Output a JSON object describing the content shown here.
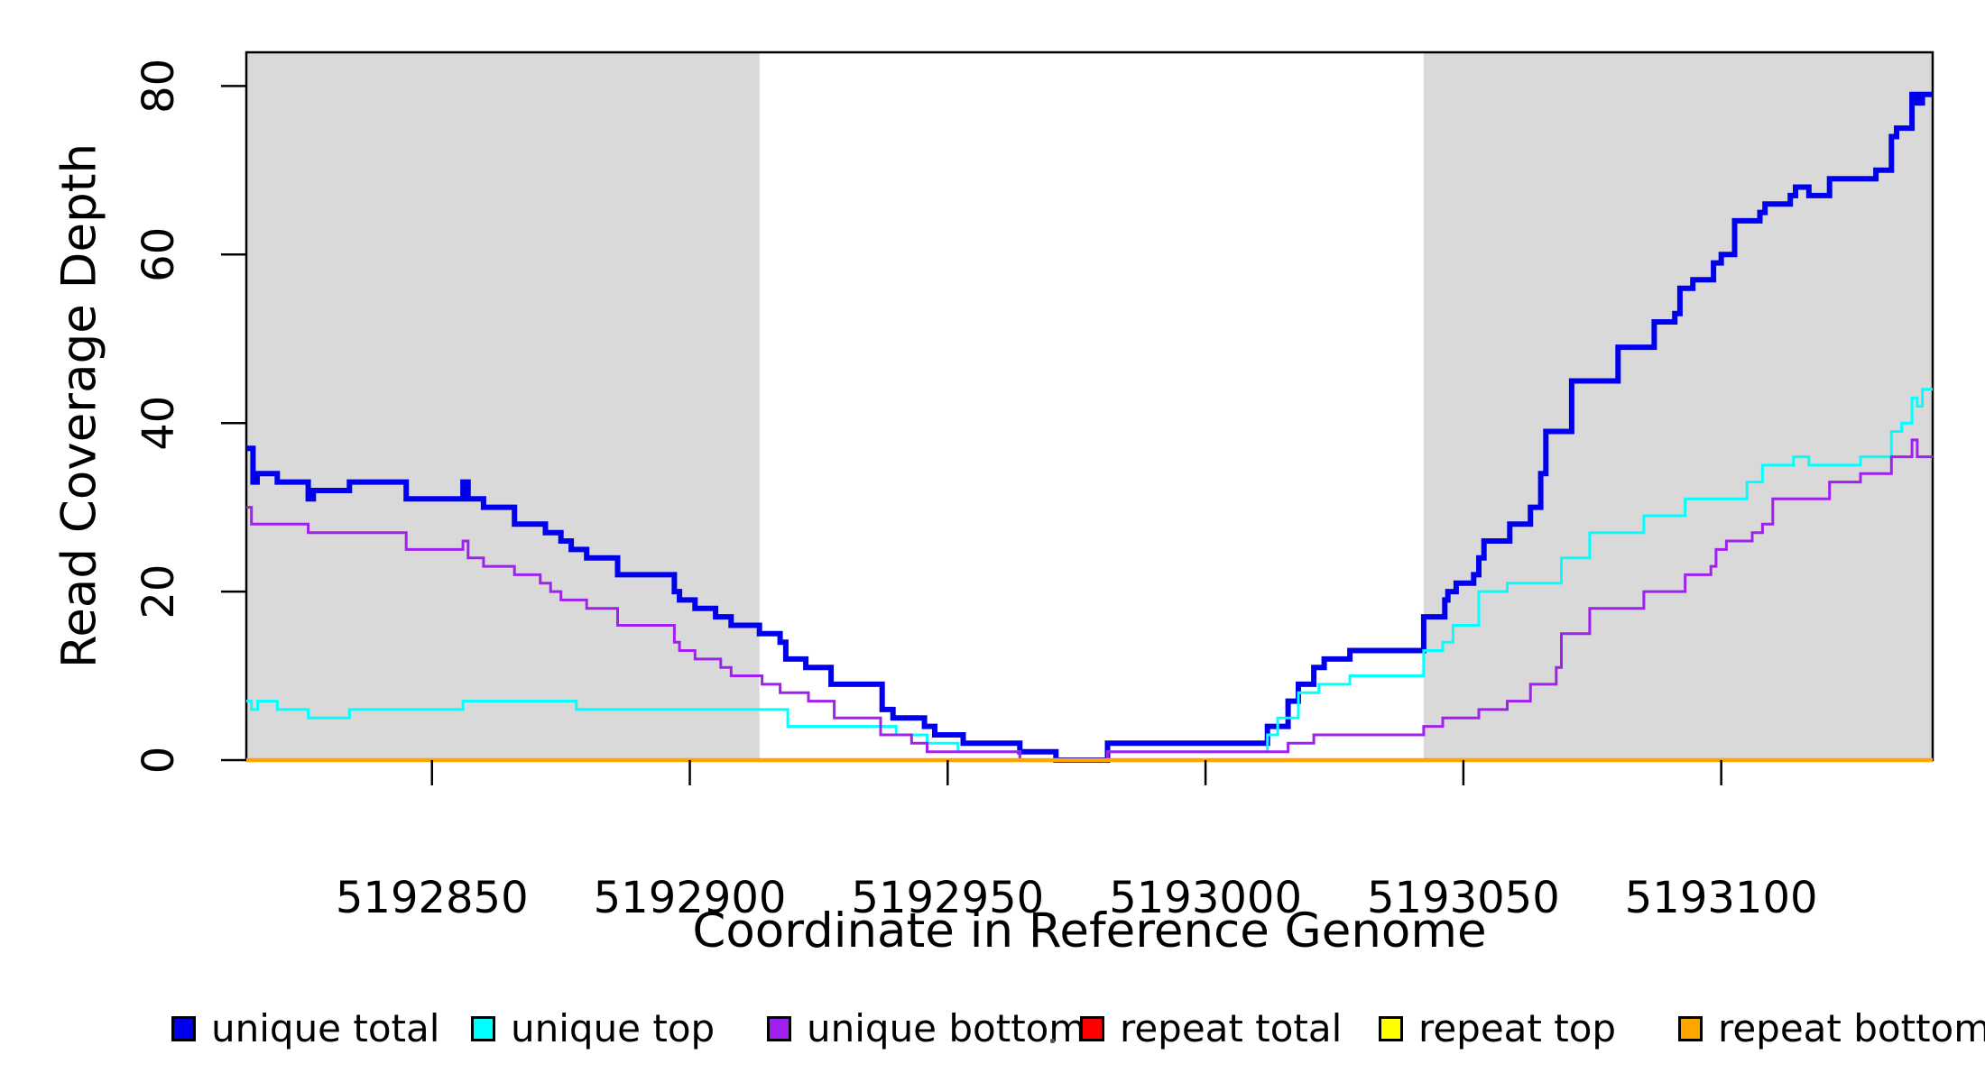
{
  "figure": {
    "background": "#FFFFFF",
    "plot_border_color": "#000000",
    "shaded_band_color": "#D9D9D9",
    "tick_color": "#000000",
    "text_color": "#000000"
  },
  "chart_data": {
    "type": "line",
    "subtype": "step",
    "title": "",
    "xlabel": "Coordinate in Reference Genome",
    "ylabel": "Read Coverage Depth",
    "x_range": [
      5192814,
      5193141
    ],
    "y_range": [
      0,
      84
    ],
    "x_ticks": [
      5192850,
      5192900,
      5192950,
      5193000,
      5193050,
      5193100
    ],
    "y_ticks": [
      0,
      20,
      40,
      60,
      80
    ],
    "grid": false,
    "legend_position": "bottom",
    "shaded_regions": [
      {
        "x_start": 5192814,
        "x_end": 5192913.5,
        "color": "#D9D9D9"
      },
      {
        "x_start": 5193042.3,
        "x_end": 5193141,
        "color": "#D9D9D9"
      }
    ],
    "series": [
      {
        "name": "unique total",
        "color": "#0000EE",
        "line_width": 6,
        "points": [
          [
            5192814,
            37
          ],
          [
            5192815.3,
            33
          ],
          [
            5192816.1,
            34
          ],
          [
            5192820,
            33
          ],
          [
            5192826,
            31
          ],
          [
            5192827,
            32
          ],
          [
            5192834,
            33
          ],
          [
            5192845,
            31
          ],
          [
            5192856,
            33
          ],
          [
            5192857,
            31
          ],
          [
            5192860,
            30
          ],
          [
            5192866,
            28
          ],
          [
            5192872,
            27
          ],
          [
            5192875,
            26
          ],
          [
            5192877,
            25
          ],
          [
            5192880,
            24
          ],
          [
            5192886,
            22
          ],
          [
            5192897,
            20
          ],
          [
            5192898,
            19
          ],
          [
            5192901,
            18
          ],
          [
            5192905,
            17
          ],
          [
            5192908,
            16
          ],
          [
            5192913.5,
            15
          ],
          [
            5192917.5,
            14
          ],
          [
            5192918.6,
            12
          ],
          [
            5192922.5,
            11
          ],
          [
            5192927.4,
            9
          ],
          [
            5192937.3,
            6
          ],
          [
            5192939.4,
            5
          ],
          [
            5192945.5,
            4
          ],
          [
            5192947.5,
            3
          ],
          [
            5192953,
            2
          ],
          [
            5192964,
            1
          ],
          [
            5192971,
            0
          ],
          [
            5192981,
            2
          ],
          [
            5193012,
            4
          ],
          [
            5193016,
            7
          ],
          [
            5193018,
            9
          ],
          [
            5193021,
            11
          ],
          [
            5193023,
            12
          ],
          [
            5193028,
            13
          ],
          [
            5193042.3,
            17
          ],
          [
            5193046.4,
            19
          ],
          [
            5193047,
            20
          ],
          [
            5193048.6,
            21
          ],
          [
            5193052,
            22
          ],
          [
            5193053,
            24
          ],
          [
            5193054,
            26
          ],
          [
            5193059,
            28
          ],
          [
            5193063,
            30
          ],
          [
            5193065,
            34
          ],
          [
            5193066,
            39
          ],
          [
            5193071,
            45
          ],
          [
            5193080,
            49
          ],
          [
            5193087,
            52
          ],
          [
            5193091,
            53
          ],
          [
            5193092,
            56
          ],
          [
            5193094.5,
            57
          ],
          [
            5193098.5,
            59
          ],
          [
            5193100,
            60
          ],
          [
            5193102.6,
            64
          ],
          [
            5193107.5,
            65
          ],
          [
            5193108.5,
            66
          ],
          [
            5193113.4,
            67
          ],
          [
            5193114.4,
            68
          ],
          [
            5193117,
            67
          ],
          [
            5193121,
            69
          ],
          [
            5193130,
            70
          ],
          [
            5193133,
            74
          ],
          [
            5193134,
            75
          ],
          [
            5193137,
            79
          ],
          [
            5193138,
            78
          ],
          [
            5193139,
            79
          ],
          [
            5193141,
            79
          ]
        ]
      },
      {
        "name": "unique top",
        "color": "#00FFFF",
        "line_width": 3,
        "points": [
          [
            5192814,
            7
          ],
          [
            5192815,
            6
          ],
          [
            5192816.2,
            7
          ],
          [
            5192820,
            6
          ],
          [
            5192826,
            5
          ],
          [
            5192834,
            6
          ],
          [
            5192856,
            7
          ],
          [
            5192878,
            6
          ],
          [
            5192919,
            4
          ],
          [
            5192940,
            3
          ],
          [
            5192946,
            2
          ],
          [
            5192952,
            1
          ],
          [
            5192964,
            0
          ],
          [
            5192981,
            1
          ],
          [
            5193012,
            3
          ],
          [
            5193014,
            5
          ],
          [
            5193018,
            8
          ],
          [
            5193022,
            9
          ],
          [
            5193028,
            10
          ],
          [
            5193042.3,
            13
          ],
          [
            5193046,
            14
          ],
          [
            5193048,
            16
          ],
          [
            5193053,
            20
          ],
          [
            5193058.5,
            21
          ],
          [
            5193069,
            24
          ],
          [
            5193074.5,
            27
          ],
          [
            5193085,
            29
          ],
          [
            5193093,
            31
          ],
          [
            5193105,
            33
          ],
          [
            5193108,
            35
          ],
          [
            5193114,
            36
          ],
          [
            5193117,
            35
          ],
          [
            5193127,
            36
          ],
          [
            5193133,
            39
          ],
          [
            5193135,
            40
          ],
          [
            5193137,
            43
          ],
          [
            5193138,
            42
          ],
          [
            5193139,
            44
          ],
          [
            5193141,
            44
          ]
        ]
      },
      {
        "name": "unique bottom",
        "color": "#A020F0",
        "line_width": 3,
        "points": [
          [
            5192814,
            30
          ],
          [
            5192815,
            28
          ],
          [
            5192826,
            27
          ],
          [
            5192845,
            25
          ],
          [
            5192856,
            26
          ],
          [
            5192857,
            24
          ],
          [
            5192860,
            23
          ],
          [
            5192866,
            22
          ],
          [
            5192871,
            21
          ],
          [
            5192873,
            20
          ],
          [
            5192875,
            19
          ],
          [
            5192880,
            18
          ],
          [
            5192886,
            16
          ],
          [
            5192897,
            14
          ],
          [
            5192898,
            13
          ],
          [
            5192901,
            12
          ],
          [
            5192906,
            11
          ],
          [
            5192908,
            10
          ],
          [
            5192914,
            9
          ],
          [
            5192917.5,
            8
          ],
          [
            5192923,
            7
          ],
          [
            5192928,
            5
          ],
          [
            5192937,
            3
          ],
          [
            5192943,
            2
          ],
          [
            5192946,
            1
          ],
          [
            5192964,
            0
          ],
          [
            5192981,
            1
          ],
          [
            5193016,
            2
          ],
          [
            5193021,
            3
          ],
          [
            5193042.3,
            4
          ],
          [
            5193046,
            5
          ],
          [
            5193053,
            6
          ],
          [
            5193058.5,
            7
          ],
          [
            5193063,
            9
          ],
          [
            5193068,
            11
          ],
          [
            5193069,
            15
          ],
          [
            5193074.5,
            18
          ],
          [
            5193085,
            20
          ],
          [
            5193093,
            22
          ],
          [
            5193098,
            23
          ],
          [
            5193099,
            25
          ],
          [
            5193101,
            26
          ],
          [
            5193106,
            27
          ],
          [
            5193108,
            28
          ],
          [
            5193110,
            31
          ],
          [
            5193121,
            33
          ],
          [
            5193127,
            34
          ],
          [
            5193133,
            36
          ],
          [
            5193137,
            38
          ],
          [
            5193138,
            36
          ],
          [
            5193141,
            36
          ]
        ]
      },
      {
        "name": "repeat total",
        "color": "#FF0000",
        "line_width": 3,
        "points": [
          [
            5192814,
            0
          ],
          [
            5193141,
            0
          ]
        ]
      },
      {
        "name": "repeat top",
        "color": "#FFFF00",
        "line_width": 3,
        "points": [
          [
            5192814,
            0
          ],
          [
            5193141,
            0
          ]
        ]
      },
      {
        "name": "repeat bottom",
        "color": "#FFA500",
        "line_width": 4.5,
        "points": [
          [
            5192814,
            0
          ],
          [
            5193141,
            0
          ]
        ]
      }
    ]
  },
  "legend": {
    "items": [
      {
        "label": "unique total",
        "color": "#0000EE"
      },
      {
        "label": "unique top",
        "color": "#00FFFF"
      },
      {
        "label": "unique bottom",
        "color": "#A020F0"
      },
      {
        "label": "repeat total",
        "color": "#FF0000"
      },
      {
        "label": "repeat top",
        "color": "#FFFF00"
      },
      {
        "label": "repeat bottom",
        "color": "#FFA500"
      }
    ]
  }
}
